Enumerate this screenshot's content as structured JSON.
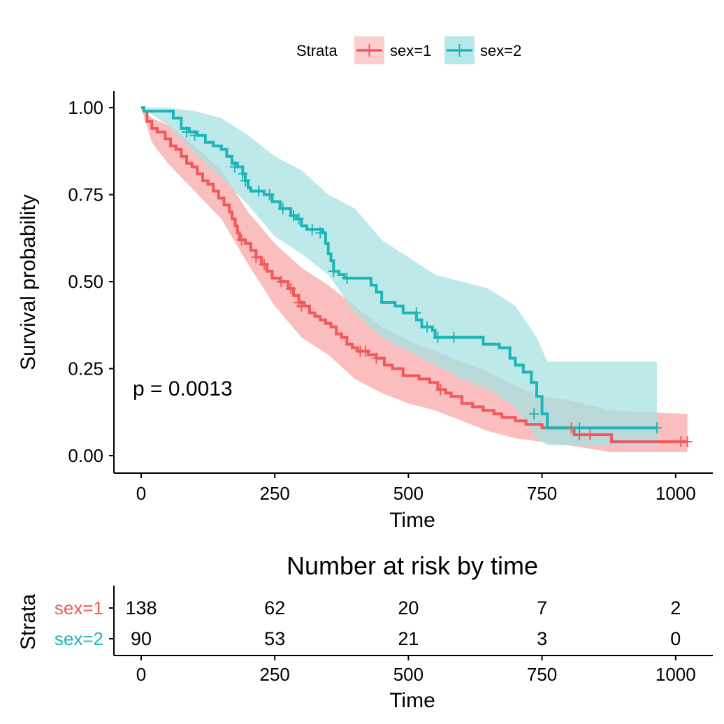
{
  "chart_data": [
    {
      "type": "line",
      "ylabel": "Survival probability",
      "xlabel": "Time",
      "xlim": [
        0,
        1022
      ],
      "ylim": [
        0,
        1
      ],
      "x_ticks": [
        "0",
        "250",
        "500",
        "750",
        "1000"
      ],
      "y_ticks": [
        "0.00",
        "0.25",
        "0.50",
        "0.75",
        "1.00"
      ],
      "grid": false,
      "legend": {
        "title": "Strata",
        "position": "top",
        "labels": [
          "sex=1",
          "sex=2"
        ]
      },
      "annotation": "p = 0.0013",
      "series": [
        {
          "name": "sex=1",
          "color": "#f0595b",
          "band_color": "#f8a8aa",
          "steps": [
            [
              0,
              1.0
            ],
            [
              5,
              0.99
            ],
            [
              11,
              0.96
            ],
            [
              20,
              0.94
            ],
            [
              30,
              0.93
            ],
            [
              45,
              0.91
            ],
            [
              55,
              0.89
            ],
            [
              65,
              0.88
            ],
            [
              75,
              0.86
            ],
            [
              85,
              0.84
            ],
            [
              95,
              0.83
            ],
            [
              105,
              0.81
            ],
            [
              115,
              0.79
            ],
            [
              125,
              0.78
            ],
            [
              135,
              0.76
            ],
            [
              145,
              0.74
            ],
            [
              155,
              0.72
            ],
            [
              165,
              0.7
            ],
            [
              170,
              0.68
            ],
            [
              176,
              0.66
            ],
            [
              180,
              0.64
            ],
            [
              184,
              0.62
            ],
            [
              195,
              0.61
            ],
            [
              205,
              0.59
            ],
            [
              215,
              0.57
            ],
            [
              225,
              0.55
            ],
            [
              235,
              0.53
            ],
            [
              245,
              0.51
            ],
            [
              260,
              0.5
            ],
            [
              275,
              0.48
            ],
            [
              285,
              0.46
            ],
            [
              295,
              0.44
            ],
            [
              305,
              0.43
            ],
            [
              315,
              0.41
            ],
            [
              325,
              0.4
            ],
            [
              335,
              0.39
            ],
            [
              345,
              0.38
            ],
            [
              355,
              0.37
            ],
            [
              365,
              0.35
            ],
            [
              375,
              0.34
            ],
            [
              385,
              0.32
            ],
            [
              395,
              0.31
            ],
            [
              405,
              0.3
            ],
            [
              425,
              0.29
            ],
            [
              440,
              0.28
            ],
            [
              455,
              0.26
            ],
            [
              470,
              0.25
            ],
            [
              490,
              0.23
            ],
            [
              520,
              0.22
            ],
            [
              540,
              0.21
            ],
            [
              555,
              0.19
            ],
            [
              570,
              0.18
            ],
            [
              580,
              0.17
            ],
            [
              600,
              0.15
            ],
            [
              620,
              0.14
            ],
            [
              640,
              0.13
            ],
            [
              660,
              0.12
            ],
            [
              675,
              0.11
            ],
            [
              700,
              0.1
            ],
            [
              720,
              0.09
            ],
            [
              750,
              0.08
            ],
            [
              810,
              0.06
            ],
            [
              880,
              0.04
            ],
            [
              1022,
              0.04
            ]
          ],
          "censored": [
            [
              188,
              0.62
            ],
            [
              215,
              0.57
            ],
            [
              230,
              0.55
            ],
            [
              262,
              0.5
            ],
            [
              280,
              0.48
            ],
            [
              295,
              0.44
            ],
            [
              300,
              0.43
            ],
            [
              410,
              0.3
            ],
            [
              420,
              0.3
            ],
            [
              440,
              0.28
            ],
            [
              560,
              0.19
            ],
            [
              805,
              0.08
            ],
            [
              820,
              0.06
            ],
            [
              840,
              0.06
            ],
            [
              1010,
              0.04
            ],
            [
              1022,
              0.04
            ]
          ],
          "band_upper": [
            [
              0,
              1.0
            ],
            [
              20,
              0.97
            ],
            [
              50,
              0.95
            ],
            [
              100,
              0.89
            ],
            [
              150,
              0.82
            ],
            [
              200,
              0.7
            ],
            [
              250,
              0.61
            ],
            [
              300,
              0.54
            ],
            [
              350,
              0.49
            ],
            [
              400,
              0.43
            ],
            [
              450,
              0.37
            ],
            [
              500,
              0.33
            ],
            [
              550,
              0.3
            ],
            [
              600,
              0.27
            ],
            [
              650,
              0.24
            ],
            [
              700,
              0.2
            ],
            [
              750,
              0.17
            ],
            [
              800,
              0.16
            ],
            [
              880,
              0.13
            ],
            [
              1022,
              0.12
            ]
          ],
          "band_lower": [
            [
              0,
              1.0
            ],
            [
              20,
              0.9
            ],
            [
              50,
              0.84
            ],
            [
              100,
              0.76
            ],
            [
              150,
              0.68
            ],
            [
              200,
              0.55
            ],
            [
              250,
              0.43
            ],
            [
              300,
              0.34
            ],
            [
              350,
              0.29
            ],
            [
              400,
              0.22
            ],
            [
              450,
              0.18
            ],
            [
              500,
              0.15
            ],
            [
              550,
              0.13
            ],
            [
              600,
              0.1
            ],
            [
              650,
              0.07
            ],
            [
              700,
              0.05
            ],
            [
              750,
              0.04
            ],
            [
              800,
              0.03
            ],
            [
              880,
              0.01
            ],
            [
              1022,
              0.01
            ]
          ]
        },
        {
          "name": "sex=2",
          "color": "#1eb5b8",
          "band_color": "#a7e2e3",
          "steps": [
            [
              0,
              1.0
            ],
            [
              5,
              0.99
            ],
            [
              60,
              0.97
            ],
            [
              75,
              0.94
            ],
            [
              90,
              0.93
            ],
            [
              105,
              0.92
            ],
            [
              120,
              0.9
            ],
            [
              135,
              0.89
            ],
            [
              150,
              0.88
            ],
            [
              160,
              0.86
            ],
            [
              170,
              0.84
            ],
            [
              180,
              0.83
            ],
            [
              190,
              0.81
            ],
            [
              195,
              0.79
            ],
            [
              200,
              0.77
            ],
            [
              205,
              0.76
            ],
            [
              230,
              0.75
            ],
            [
              245,
              0.73
            ],
            [
              260,
              0.71
            ],
            [
              280,
              0.69
            ],
            [
              290,
              0.68
            ],
            [
              300,
              0.66
            ],
            [
              310,
              0.65
            ],
            [
              340,
              0.64
            ],
            [
              345,
              0.61
            ],
            [
              350,
              0.58
            ],
            [
              355,
              0.56
            ],
            [
              360,
              0.53
            ],
            [
              370,
              0.52
            ],
            [
              380,
              0.51
            ],
            [
              430,
              0.49
            ],
            [
              440,
              0.47
            ],
            [
              450,
              0.44
            ],
            [
              475,
              0.43
            ],
            [
              490,
              0.41
            ],
            [
              515,
              0.39
            ],
            [
              525,
              0.37
            ],
            [
              545,
              0.36
            ],
            [
              550,
              0.34
            ],
            [
              640,
              0.32
            ],
            [
              670,
              0.31
            ],
            [
              690,
              0.28
            ],
            [
              700,
              0.26
            ],
            [
              715,
              0.24
            ],
            [
              730,
              0.21
            ],
            [
              740,
              0.17
            ],
            [
              750,
              0.12
            ],
            [
              760,
              0.08
            ],
            [
              965,
              0.08
            ]
          ],
          "censored": [
            [
              85,
              0.93
            ],
            [
              100,
              0.92
            ],
            [
              175,
              0.83
            ],
            [
              190,
              0.81
            ],
            [
              195,
              0.79
            ],
            [
              220,
              0.76
            ],
            [
              240,
              0.75
            ],
            [
              265,
              0.71
            ],
            [
              285,
              0.69
            ],
            [
              295,
              0.68
            ],
            [
              320,
              0.65
            ],
            [
              335,
              0.64
            ],
            [
              360,
              0.53
            ],
            [
              385,
              0.51
            ],
            [
              515,
              0.41
            ],
            [
              535,
              0.37
            ],
            [
              555,
              0.34
            ],
            [
              585,
              0.34
            ],
            [
              735,
              0.12
            ],
            [
              820,
              0.08
            ],
            [
              965,
              0.08
            ]
          ],
          "band_upper": [
            [
              0,
              1.0
            ],
            [
              50,
              1.0
            ],
            [
              100,
              0.99
            ],
            [
              150,
              0.97
            ],
            [
              200,
              0.92
            ],
            [
              250,
              0.86
            ],
            [
              300,
              0.82
            ],
            [
              350,
              0.75
            ],
            [
              400,
              0.71
            ],
            [
              450,
              0.62
            ],
            [
              500,
              0.57
            ],
            [
              550,
              0.52
            ],
            [
              600,
              0.5
            ],
            [
              650,
              0.48
            ],
            [
              700,
              0.43
            ],
            [
              740,
              0.34
            ],
            [
              760,
              0.27
            ],
            [
              965,
              0.27
            ]
          ],
          "band_lower": [
            [
              0,
              1.0
            ],
            [
              50,
              0.95
            ],
            [
              100,
              0.87
            ],
            [
              150,
              0.8
            ],
            [
              200,
              0.72
            ],
            [
              250,
              0.63
            ],
            [
              300,
              0.58
            ],
            [
              350,
              0.52
            ],
            [
              400,
              0.41
            ],
            [
              450,
              0.34
            ],
            [
              500,
              0.3
            ],
            [
              550,
              0.26
            ],
            [
              600,
              0.22
            ],
            [
              650,
              0.19
            ],
            [
              700,
              0.14
            ],
            [
              740,
              0.05
            ],
            [
              760,
              0.03
            ],
            [
              965,
              0.03
            ]
          ]
        }
      ]
    },
    {
      "type": "table",
      "title": "Number at risk by time",
      "xlabel": "Time",
      "ylabel": "Strata",
      "xlim": [
        0,
        1022
      ],
      "x_ticks": [
        "0",
        "250",
        "500",
        "750",
        "1000"
      ],
      "rows": [
        {
          "label": "sex=1",
          "color": "#f0595b",
          "times": [
            0,
            250,
            500,
            750,
            1000
          ],
          "values": [
            "138",
            "62",
            "20",
            "7",
            "2"
          ]
        },
        {
          "label": "sex=2",
          "color": "#1eb5b8",
          "times": [
            0,
            250,
            500,
            750,
            1000
          ],
          "values": [
            "90",
            "53",
            "21",
            "3",
            "0"
          ]
        }
      ]
    }
  ]
}
